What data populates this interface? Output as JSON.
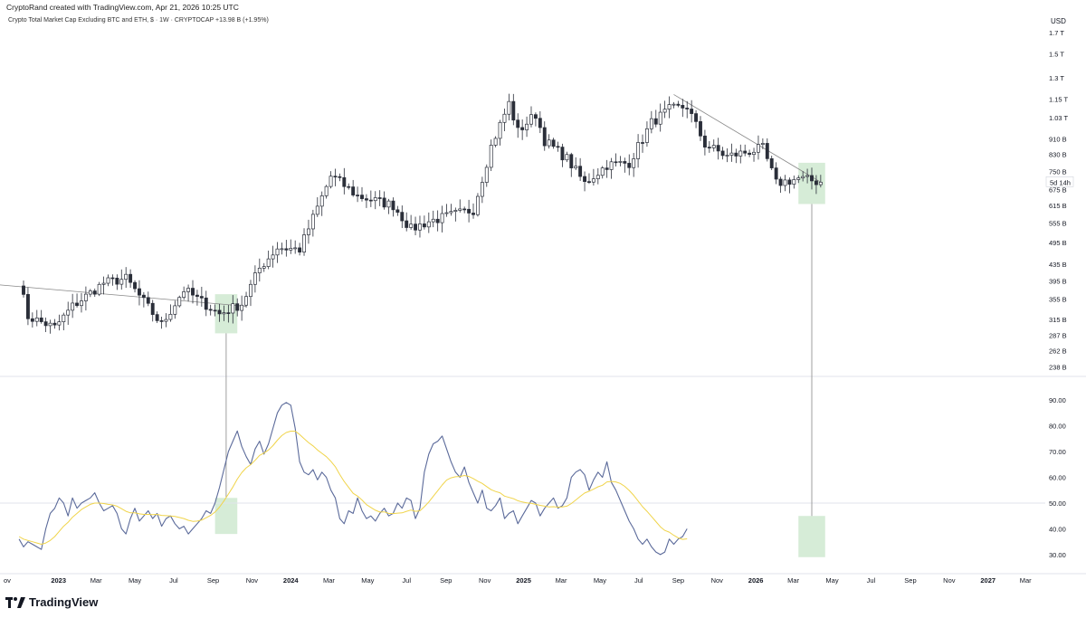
{
  "header": {
    "attribution": "CryptoRand created with TradingView.com, Apr 21, 2026 10:25 UTC",
    "symbol_line": "Crypto Total Market Cap Excluding BTC and ETH, $ · 1W · CRYPTOCAP  +13.98 B (+1.95%)",
    "currency": "USD"
  },
  "colors": {
    "up_candle": "#ffffff",
    "down_candle": "#2a2e39",
    "candle_outline": "#2a2e39",
    "rsi_line": "#5b6a9a",
    "rsi_ma": "#f0d44a",
    "highlight_box": "#c8e6c9",
    "trendline": "#888888",
    "separator": "#e0e3eb"
  },
  "countdown": "5d 14h",
  "logo_text": "TradingView",
  "chart_data": [
    {
      "type": "candlestick",
      "title": "Crypto Total Market Cap Excluding BTC and ETH",
      "interval": "1W",
      "scale": "log",
      "ylim": [
        230,
        1800
      ],
      "yticks": [
        "1.7 T",
        "1.5 T",
        "1.3 T",
        "1.15 T",
        "1.03 T",
        "910 B",
        "830 B",
        "750 B",
        "675 B",
        "615 B",
        "555 B",
        "495 B",
        "435 B",
        "395 B",
        "355 B",
        "315 B",
        "287 B",
        "262 B",
        "238 B"
      ],
      "ytick_values": [
        1700,
        1500,
        1300,
        1150,
        1030,
        910,
        830,
        750,
        675,
        615,
        555,
        495,
        435,
        395,
        355,
        315,
        287,
        262,
        238
      ],
      "last_value_label": "5d 14h",
      "trendlines": [
        {
          "from": [
            "2022-05-02",
            405
          ],
          "to": [
            "2023-10-23",
            340
          ]
        },
        {
          "from": [
            "2025-08-25",
            1180
          ],
          "to": [
            "2026-04-13",
            705
          ]
        }
      ],
      "highlights": [
        {
          "x_range": [
            "2023-09-04",
            "2023-10-09"
          ],
          "y_range": [
            290,
            365
          ]
        },
        {
          "x_range": [
            "2026-03-09",
            "2026-04-20"
          ],
          "y_range": [
            620,
            790
          ]
        }
      ],
      "anchors": [
        [
          "2022-10-31",
          395
        ],
        [
          "2022-11-14",
          320
        ],
        [
          "2022-12-26",
          300
        ],
        [
          "2023-01-23",
          340
        ],
        [
          "2023-03-13",
          390
        ],
        [
          "2023-04-17",
          400
        ],
        [
          "2023-06-12",
          305
        ],
        [
          "2023-07-17",
          375
        ],
        [
          "2023-09-11",
          325
        ],
        [
          "2023-10-16",
          345
        ],
        [
          "2023-11-13",
          425
        ],
        [
          "2023-12-11",
          480
        ],
        [
          "2024-01-15",
          475
        ],
        [
          "2024-03-04",
          730
        ],
        [
          "2024-03-11",
          720
        ],
        [
          "2024-04-15",
          650
        ],
        [
          "2024-06-10",
          615
        ],
        [
          "2024-07-08",
          535
        ],
        [
          "2024-08-05",
          560
        ],
        [
          "2024-09-09",
          580
        ],
        [
          "2024-10-14",
          600
        ],
        [
          "2024-11-11",
          870
        ],
        [
          "2024-12-09",
          1120
        ],
        [
          "2024-12-23",
          950
        ],
        [
          "2025-01-20",
          1050
        ],
        [
          "2025-02-03",
          900
        ],
        [
          "2025-03-10",
          810
        ],
        [
          "2025-04-07",
          700
        ],
        [
          "2025-05-12",
          780
        ],
        [
          "2025-06-16",
          790
        ],
        [
          "2025-07-21",
          1000
        ],
        [
          "2025-08-18",
          1080
        ],
        [
          "2025-09-15",
          1100
        ],
        [
          "2025-10-13",
          880
        ],
        [
          "2025-11-17",
          820
        ],
        [
          "2025-12-15",
          840
        ],
        [
          "2026-01-12",
          860
        ],
        [
          "2026-02-02",
          700
        ],
        [
          "2026-03-09",
          720
        ],
        [
          "2026-04-13",
          705
        ]
      ]
    },
    {
      "type": "line",
      "title": "RSI",
      "ylim": [
        24,
        96
      ],
      "yticks": [
        "90.00",
        "80.00",
        "70.00",
        "60.00",
        "50.00",
        "40.00",
        "30.00"
      ],
      "ytick_values": [
        90,
        80,
        70,
        60,
        50,
        40,
        30
      ],
      "hline": 50,
      "series": [
        {
          "name": "",
          "color": "#5b6a9a",
          "values": [
            36,
            33,
            35,
            34,
            33,
            32,
            40,
            46,
            48,
            52,
            50,
            45,
            52,
            48,
            50,
            51,
            52,
            54,
            50,
            47,
            48,
            49,
            46,
            40,
            38,
            44,
            48,
            43,
            45,
            47,
            44,
            46,
            41,
            44,
            45,
            42,
            40,
            41,
            38,
            40,
            42,
            44,
            47,
            46,
            50,
            56,
            63,
            70,
            74,
            78,
            72,
            68,
            65,
            71,
            74,
            69,
            73,
            79,
            85,
            88,
            89,
            88,
            79,
            66,
            62,
            61,
            63,
            59,
            62,
            60,
            55,
            52,
            44,
            42,
            47,
            46,
            52,
            47,
            44,
            45,
            43,
            46,
            48,
            45,
            46,
            50,
            48,
            52,
            51,
            44,
            48,
            62,
            69,
            73,
            74,
            76,
            71,
            66,
            62,
            60,
            64,
            58,
            54,
            50,
            55,
            48,
            47,
            49,
            52,
            44,
            46,
            47,
            42,
            45,
            48,
            51,
            50,
            45,
            48,
            50,
            52,
            48,
            49,
            52,
            60,
            62,
            63,
            61,
            55,
            59,
            62,
            60,
            66,
            58,
            55,
            51,
            47,
            43,
            40,
            36,
            34,
            36,
            33,
            31,
            30,
            31,
            36,
            34,
            36,
            37,
            40
          ],
          "x_start": "2022-10-31",
          "x_step_days": 7
        },
        {
          "name": "",
          "color": "#f0d44a",
          "values": [
            37,
            36,
            35.5,
            35,
            34.5,
            34,
            34.5,
            35.5,
            37,
            39,
            41,
            42.5,
            44.5,
            46,
            47.5,
            48.5,
            49.5,
            50,
            50,
            49.8,
            49.5,
            49.3,
            48.8,
            47.8,
            46.8,
            46.2,
            46.2,
            45.8,
            45.6,
            45.6,
            45.5,
            45.6,
            45.2,
            45.1,
            45,
            44.8,
            44.4,
            44,
            43.3,
            42.9,
            43,
            43.4,
            44.3,
            45.2,
            46.5,
            48.4,
            50.8,
            53.5,
            56.2,
            59.3,
            61.8,
            63.7,
            64.9,
            66.6,
            68.5,
            69.4,
            70.6,
            72.3,
            74.4,
            76.2,
            77.4,
            77.9,
            77.9,
            76.6,
            75,
            73.5,
            72.2,
            70.6,
            69.3,
            68,
            66.2,
            64.1,
            61.1,
            58.4,
            56.1,
            53.8,
            52.7,
            51.2,
            49.4,
            48.3,
            47.2,
            46.5,
            46.6,
            46,
            45.9,
            46.1,
            46.2,
            46.8,
            47.3,
            46.8,
            47,
            48.6,
            50.4,
            52.6,
            54.8,
            57,
            58.9,
            59.8,
            60.2,
            60.3,
            60.7,
            60.3,
            59.5,
            58.5,
            57.6,
            56.4,
            55.2,
            54.5,
            54,
            52.7,
            52.2,
            51.7,
            50.9,
            50.4,
            50.1,
            49.9,
            49.5,
            49.1,
            48.8,
            48.5,
            48.6,
            48.4,
            48.5,
            48.8,
            49.8,
            51.2,
            52.6,
            53.9,
            54.6,
            55.4,
            56.3,
            56.9,
            58.2,
            58.4,
            58.2,
            57.6,
            56.5,
            54.9,
            53,
            50.8,
            48.6,
            46.8,
            44.8,
            42.8,
            40.8,
            39.4,
            38.7,
            37.5,
            36.5,
            35.9,
            36.1
          ]
        }
      ],
      "highlights": [
        {
          "x_range": [
            "2023-09-04",
            "2023-10-09"
          ],
          "y_range": [
            38,
            52
          ]
        },
        {
          "x_range": [
            "2026-03-09",
            "2026-04-20"
          ],
          "y_range": [
            29,
            45
          ]
        }
      ]
    }
  ],
  "x_axis": {
    "start": "2022-10-01",
    "end": "2027-04-01",
    "labels": [
      {
        "text": "ov",
        "date": "2022-11-01",
        "major": false
      },
      {
        "text": "2023",
        "date": "2023-01-01",
        "major": true
      },
      {
        "text": "Mar",
        "date": "2023-03-01",
        "major": false
      },
      {
        "text": "May",
        "date": "2023-05-01",
        "major": false
      },
      {
        "text": "Jul",
        "date": "2023-07-01",
        "major": false
      },
      {
        "text": "Sep",
        "date": "2023-09-01",
        "major": false
      },
      {
        "text": "Nov",
        "date": "2023-11-01",
        "major": false
      },
      {
        "text": "2024",
        "date": "2024-01-01",
        "major": true
      },
      {
        "text": "Mar",
        "date": "2024-03-01",
        "major": false
      },
      {
        "text": "May",
        "date": "2024-05-01",
        "major": false
      },
      {
        "text": "Jul",
        "date": "2024-07-01",
        "major": false
      },
      {
        "text": "Sep",
        "date": "2024-09-01",
        "major": false
      },
      {
        "text": "Nov",
        "date": "2024-11-01",
        "major": false
      },
      {
        "text": "2025",
        "date": "2025-01-01",
        "major": true
      },
      {
        "text": "Mar",
        "date": "2025-03-01",
        "major": false
      },
      {
        "text": "May",
        "date": "2025-05-01",
        "major": false
      },
      {
        "text": "Jul",
        "date": "2025-07-01",
        "major": false
      },
      {
        "text": "Sep",
        "date": "2025-09-01",
        "major": false
      },
      {
        "text": "Nov",
        "date": "2025-11-01",
        "major": false
      },
      {
        "text": "2026",
        "date": "2026-01-01",
        "major": true
      },
      {
        "text": "Mar",
        "date": "2026-03-01",
        "major": false
      },
      {
        "text": "May",
        "date": "2026-05-01",
        "major": false
      },
      {
        "text": "Jul",
        "date": "2026-07-01",
        "major": false
      },
      {
        "text": "Sep",
        "date": "2026-09-01",
        "major": false
      },
      {
        "text": "Nov",
        "date": "2026-11-01",
        "major": false
      },
      {
        "text": "2027",
        "date": "2027-01-01",
        "major": true
      },
      {
        "text": "Mar",
        "date": "2027-03-01",
        "major": false
      }
    ]
  }
}
